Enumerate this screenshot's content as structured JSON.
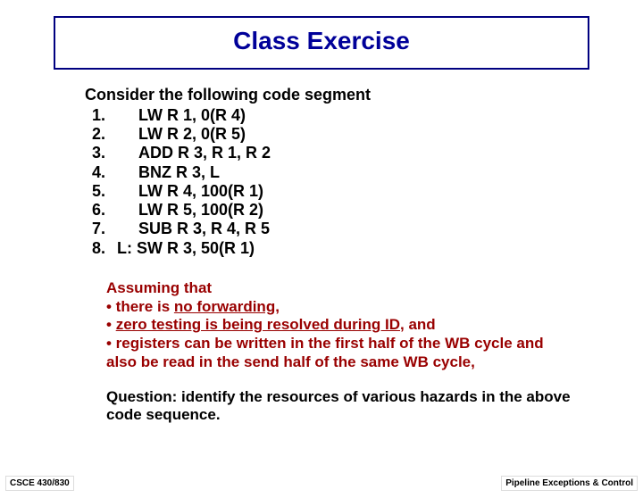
{
  "title": "Class Exercise",
  "intro": "Consider the following code segment",
  "code": [
    {
      "n": "1.",
      "ins": "LW R 1, 0(R 4)"
    },
    {
      "n": "2.",
      "ins": "LW R 2, 0(R 5)"
    },
    {
      "n": "3.",
      "ins": "ADD R 3, R 1, R 2"
    },
    {
      "n": "4.",
      "ins": "BNZ R 3, L"
    },
    {
      "n": "5.",
      "ins": "LW  R 4, 100(R 1)"
    },
    {
      "n": "6.",
      "ins": "LW R 5, 100(R 2)"
    },
    {
      "n": "7.",
      "ins": "SUB R 3, R 4, R 5"
    },
    {
      "n": "8.",
      "ins": "L: SW R 3, 50(R 1)",
      "no_indent": true
    }
  ],
  "assume": {
    "heading": "Assuming that",
    "b1_pre": "• there is ",
    "b1_ul": "no forwarding",
    "b1_post": ",",
    "b2_pre": "• ",
    "b2_ul": "zero testing is being resolved during ID",
    "b2_post": ", and",
    "b3": "• registers can be written in the first half of the WB cycle and also be read in the send half of the same WB cycle,"
  },
  "question": "Question: identify the resources of various hazards in the above code sequence.",
  "footer_left": "CSCE 430/830",
  "footer_right": "Pipeline Exceptions & Control",
  "colors": {
    "title_color": "#000099",
    "title_border": "#000080",
    "assume_color": "#990000",
    "background": "#ffffff",
    "footer_border": "#dcdcdc"
  }
}
